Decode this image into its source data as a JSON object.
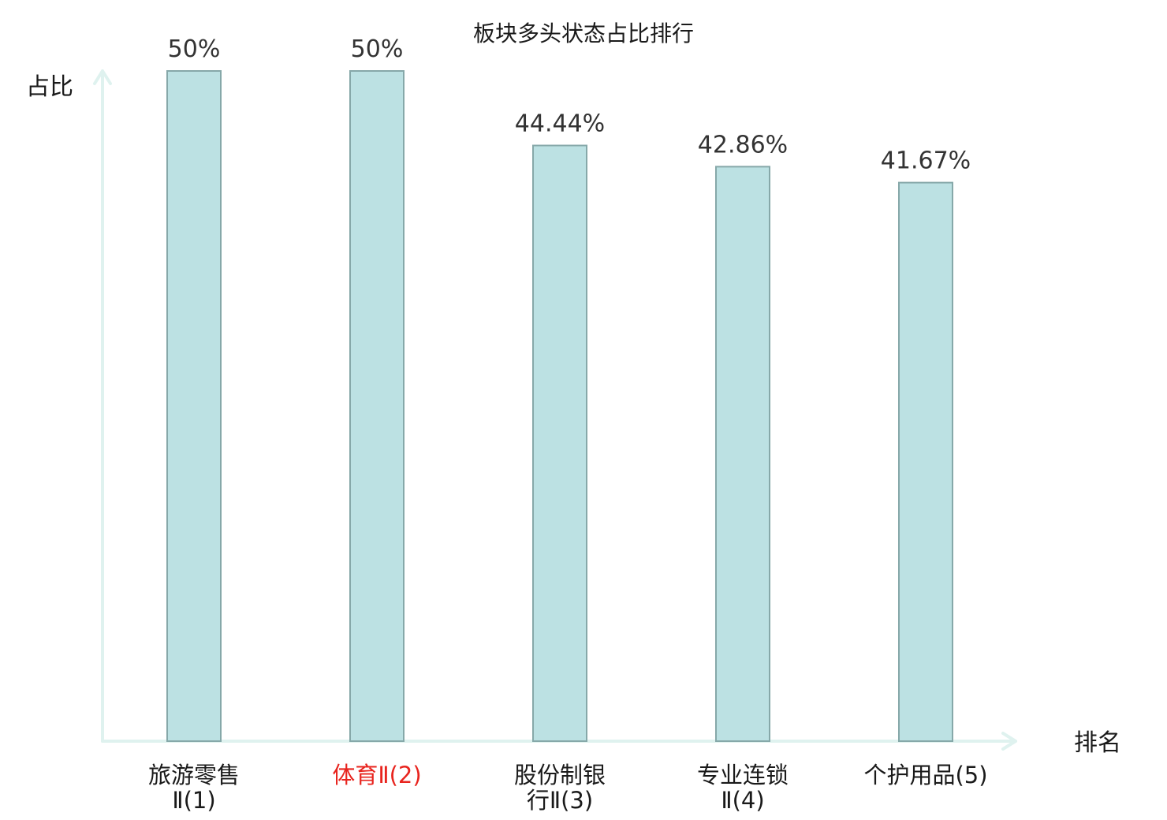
{
  "chart_data": {
    "type": "bar",
    "title": "板块多头状态占比排行",
    "ylabel": "占比",
    "xlabel": "排名",
    "categories": [
      [
        "旅游零售",
        "Ⅱ(1)"
      ],
      [
        "体育Ⅱ(2)"
      ],
      [
        "股份制银",
        "行Ⅱ(3)"
      ],
      [
        "专业连锁",
        "Ⅱ(4)"
      ],
      [
        "个护用品(5)"
      ]
    ],
    "values": [
      50,
      50,
      44.44,
      42.86,
      41.67
    ],
    "value_labels": [
      "50%",
      "50%",
      "44.44%",
      "42.86%",
      "41.67%"
    ],
    "highlight_index": 1,
    "ylim": [
      0,
      50
    ],
    "grid": false,
    "legend": "none",
    "colors": {
      "bar_fill": "#bce1e3",
      "bar_stroke": "#86a8a9",
      "axis": "#dff2ef",
      "label": "#1a1a1a",
      "highlight_label": "#e8241e",
      "value_text": "#333333"
    }
  }
}
